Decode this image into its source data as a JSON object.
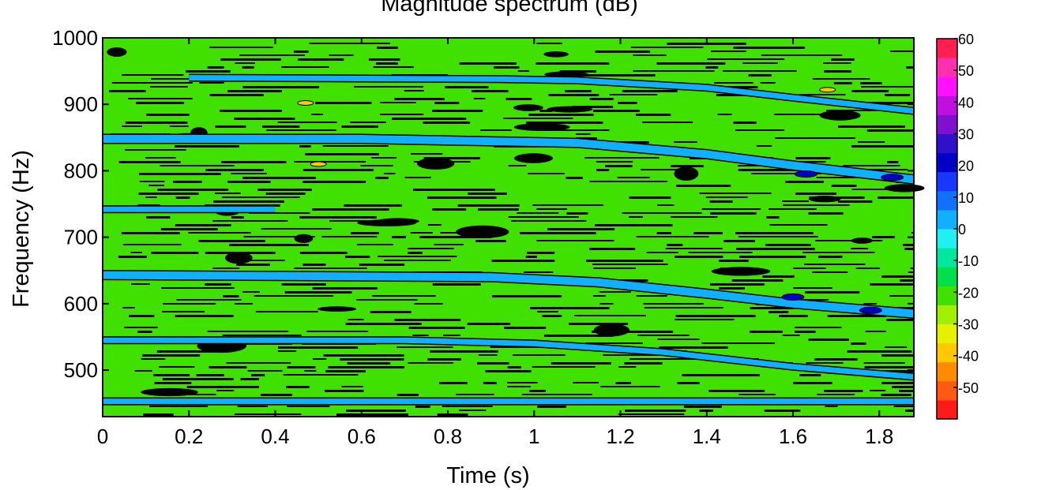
{
  "chart_data": {
    "type": "heatmap",
    "title": "Magnitude spectrum  (dB)",
    "xlabel": "Time (s)",
    "ylabel": "Frequency (Hz)",
    "xlim": [
      0,
      1.88
    ],
    "ylim": [
      430,
      1000
    ],
    "x_ticks": [
      0,
      0.2,
      0.4,
      0.6,
      0.8,
      1,
      1.2,
      1.4,
      1.6,
      1.8
    ],
    "x_tick_labels": [
      "0",
      "0.2",
      "0.4",
      "0.6",
      "0.8",
      "1",
      "1.2",
      "1.4",
      "1.6",
      "1.8"
    ],
    "y_ticks": [
      500,
      600,
      700,
      800,
      900,
      1000
    ],
    "y_tick_labels": [
      "500",
      "600",
      "700",
      "800",
      "900",
      "1000"
    ],
    "background_level_db": -20,
    "colorbar": {
      "range": [
        -60,
        60
      ],
      "ticks": [
        60,
        50,
        40,
        30,
        20,
        10,
        0,
        -10,
        -20,
        -30,
        -40,
        -50
      ],
      "tick_labels": [
        "60",
        "50",
        "40",
        "30",
        "20",
        "10",
        "0",
        "-10",
        "-20",
        "-30",
        "-40",
        "-50"
      ],
      "colors": [
        "#ff1a1a",
        "#ff5a10",
        "#ff8c00",
        "#ffc800",
        "#e6f000",
        "#a0f000",
        "#40e000",
        "#00e04a",
        "#00e8a0",
        "#20f0f0",
        "#10b0ff",
        "#1070ff",
        "#1838ff",
        "#0000c8",
        "#3010c8",
        "#8010d0",
        "#c010e0",
        "#ff10ff",
        "#ff30b0",
        "#ff2050"
      ]
    },
    "tracks": [
      {
        "level_db": 0,
        "points": [
          [
            0,
            848
          ],
          [
            0.6,
            848
          ],
          [
            1.1,
            842
          ],
          [
            1.4,
            825
          ],
          [
            1.6,
            808
          ],
          [
            1.88,
            787
          ]
        ]
      },
      {
        "level_db": 0,
        "points": [
          [
            0,
            643
          ],
          [
            0.9,
            640
          ],
          [
            1.15,
            632
          ],
          [
            1.4,
            615
          ],
          [
            1.6,
            600
          ],
          [
            1.88,
            585
          ]
        ]
      },
      {
        "level_db": 0,
        "points": [
          [
            0,
            545
          ],
          [
            0.7,
            545
          ],
          [
            1.0,
            540
          ],
          [
            1.3,
            527
          ],
          [
            1.6,
            505
          ],
          [
            1.88,
            490
          ]
        ]
      },
      {
        "level_db": 0,
        "points": [
          [
            0,
            453
          ],
          [
            1.88,
            453
          ]
        ]
      },
      {
        "level_db": 0,
        "points": [
          [
            0.2,
            940
          ],
          [
            0.9,
            938
          ],
          [
            1.1,
            936
          ],
          [
            1.4,
            925
          ],
          [
            1.6,
            910
          ],
          [
            1.88,
            890
          ]
        ]
      },
      {
        "level_db": 0,
        "points": [
          [
            0,
            742
          ],
          [
            0.4,
            742
          ]
        ]
      }
    ],
    "hot_spots": [
      {
        "x": 1.68,
        "y": 922,
        "level_db": -40
      },
      {
        "x": 0.47,
        "y": 902,
        "level_db": -40
      },
      {
        "x": 0.5,
        "y": 810,
        "level_db": -40
      },
      {
        "x": 1.83,
        "y": 790,
        "level_db": 20
      },
      {
        "x": 1.63,
        "y": 795,
        "level_db": 20
      },
      {
        "x": 1.6,
        "y": 610,
        "level_db": 20
      },
      {
        "x": 1.78,
        "y": 590,
        "level_db": 20
      }
    ]
  }
}
